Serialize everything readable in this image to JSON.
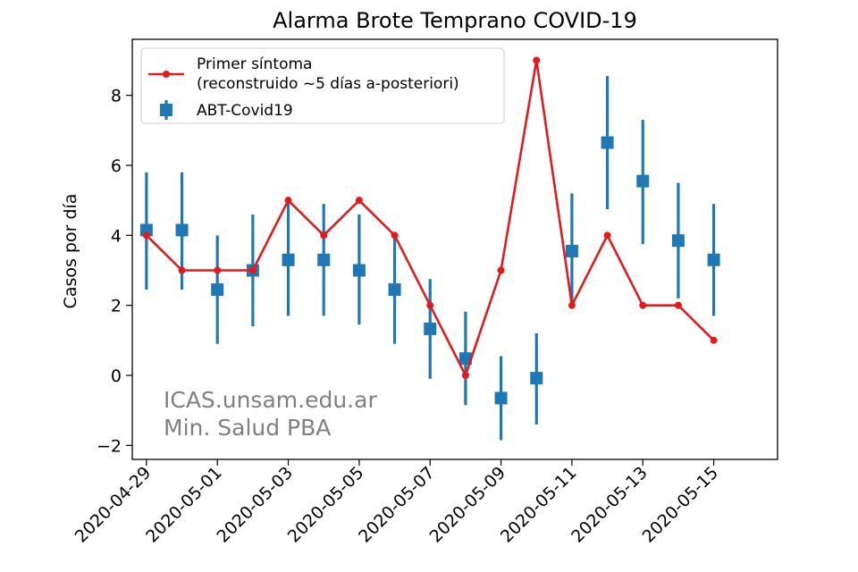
{
  "chart_data": {
    "type": "line",
    "title": "Alarma Brote Temprano COVID-19",
    "xlabel": "",
    "ylabel": "Casos por día",
    "x": [
      "2020-04-29",
      "2020-04-30",
      "2020-05-01",
      "2020-05-02",
      "2020-05-03",
      "2020-05-04",
      "2020-05-05",
      "2020-05-06",
      "2020-05-07",
      "2020-05-08",
      "2020-05-09",
      "2020-05-10",
      "2020-05-11",
      "2020-05-12",
      "2020-05-13",
      "2020-05-14",
      "2020-05-15"
    ],
    "xticks": [
      "2020-04-29",
      "2020-05-01",
      "2020-05-03",
      "2020-05-05",
      "2020-05-07",
      "2020-05-09",
      "2020-05-11",
      "2020-05-13",
      "2020-05-15"
    ],
    "xlim": [
      "2020-04-28.6",
      "2020-05-16.8"
    ],
    "ylim": [
      -2.4,
      9.6
    ],
    "yticks": [
      -2,
      0,
      2,
      4,
      6,
      8
    ],
    "grid": false,
    "legend_position": "top-left",
    "series": [
      {
        "name": "Primer síntoma\n(reconstruido ~5 días a-posteriori)",
        "kind": "line-marker",
        "color": "#e31a1c",
        "values": [
          4,
          3,
          3,
          3,
          5,
          4,
          5,
          4,
          2,
          0,
          3,
          9,
          2,
          4,
          2,
          2,
          1
        ]
      },
      {
        "name": "ABT-Covid19",
        "kind": "errorbar-square",
        "color": "#1f77b4",
        "values": [
          4.15,
          4.15,
          2.45,
          3.0,
          3.3,
          3.3,
          3.0,
          2.45,
          1.33,
          0.48,
          -0.65,
          -0.08,
          3.55,
          6.65,
          5.55,
          3.85,
          3.3
        ],
        "lower": [
          2.45,
          2.45,
          0.9,
          1.4,
          1.7,
          1.7,
          1.45,
          0.9,
          -0.1,
          -0.85,
          -1.85,
          -1.4,
          1.9,
          4.75,
          3.75,
          2.2,
          1.7
        ],
        "upper": [
          5.8,
          5.8,
          4.0,
          4.6,
          5.0,
          4.9,
          4.6,
          4.0,
          2.75,
          1.82,
          0.55,
          1.2,
          5.2,
          8.55,
          7.3,
          5.5,
          4.9
        ]
      }
    ],
    "annotations": [
      "ICAS.unsam.edu.ar",
      "Min. Salud PBA"
    ]
  }
}
